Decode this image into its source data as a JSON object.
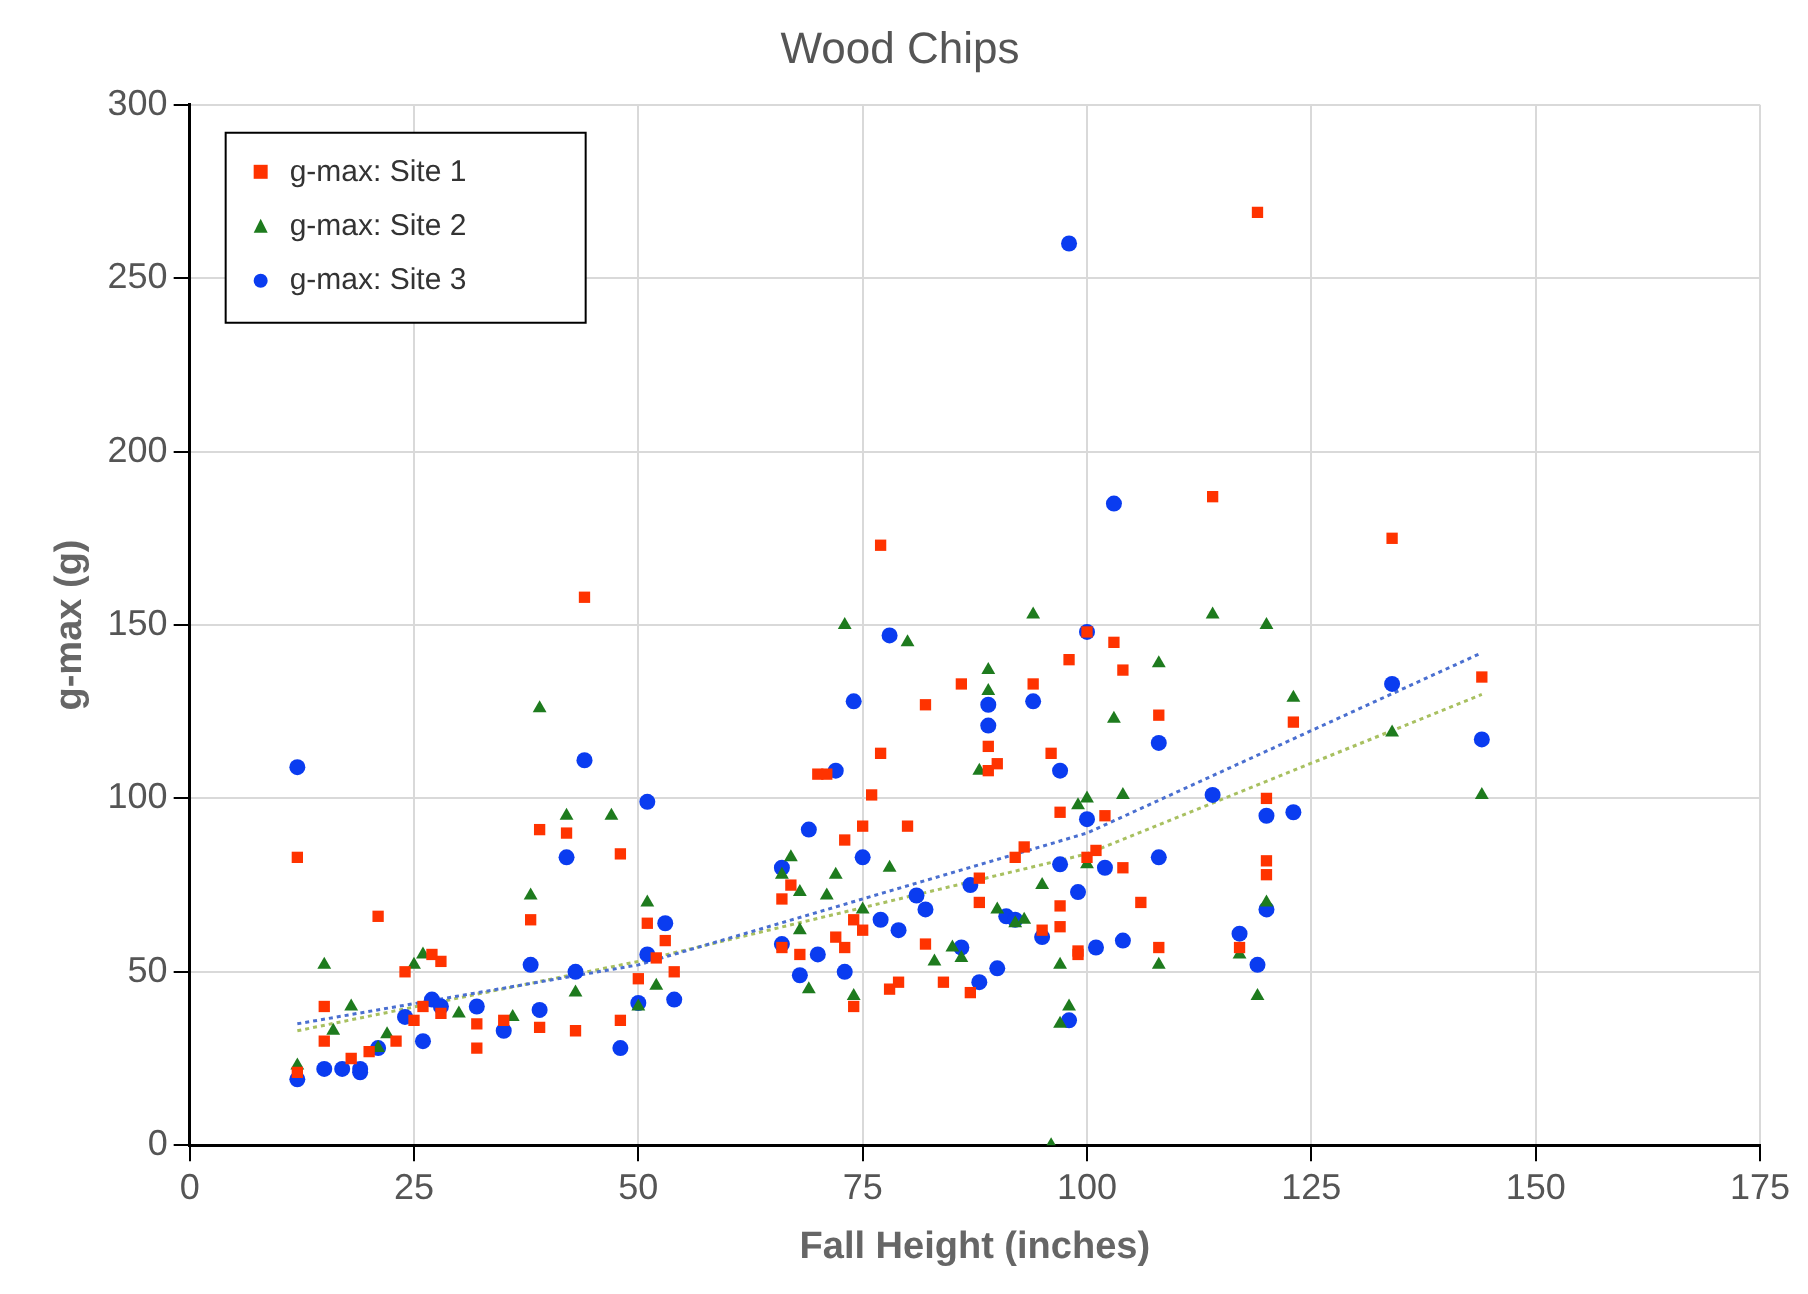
{
  "chart_data": {
    "type": "scatter",
    "title": "Wood Chips",
    "xlabel": "Fall Height (inches)",
    "ylabel": "g-max (g)",
    "xlim": [
      0,
      175
    ],
    "xticks": [
      0,
      25,
      50,
      75,
      100,
      125,
      150,
      175
    ],
    "ylim": [
      0,
      300
    ],
    "yticks": [
      0,
      50,
      100,
      150,
      200,
      250,
      300
    ],
    "grid": true,
    "legend": "top left",
    "series": [
      {
        "name": "g-max: Site 1",
        "color": "#ff3300",
        "marker": "square",
        "x": [
          12,
          12,
          15,
          15,
          18,
          20,
          21,
          23,
          24,
          25,
          26,
          27,
          28,
          28,
          32,
          32,
          35,
          38,
          39,
          39,
          42,
          43,
          44,
          48,
          48,
          50,
          51,
          52,
          53,
          54,
          66,
          66,
          67,
          68,
          70,
          71,
          72,
          73,
          73,
          74,
          74,
          75,
          75,
          76,
          77,
          77,
          78,
          79,
          80,
          82,
          82,
          84,
          86,
          87,
          88,
          88,
          89,
          89,
          90,
          92,
          93,
          94,
          95,
          96,
          97,
          97,
          97,
          98,
          99,
          99,
          100,
          100,
          101,
          102,
          103,
          104,
          104,
          106,
          108,
          108,
          114,
          117,
          119,
          120,
          120,
          120,
          123,
          134,
          144
        ],
        "values": [
          83,
          21,
          40,
          30,
          25,
          27,
          66,
          30,
          50,
          36,
          40,
          55,
          53,
          38,
          35,
          28,
          36,
          65,
          34,
          91,
          90,
          33,
          158,
          84,
          36,
          48,
          64,
          54,
          59,
          50,
          57,
          71,
          75,
          55,
          107,
          107,
          60,
          57,
          88,
          65,
          40,
          62,
          92,
          101,
          113,
          173,
          45,
          47,
          92,
          58,
          127,
          47,
          133,
          44,
          77,
          70,
          115,
          108,
          110,
          83,
          86,
          133,
          62,
          113,
          96,
          63,
          69,
          140,
          55,
          56,
          148,
          83,
          85,
          95,
          145,
          137,
          80,
          70,
          57,
          124,
          187,
          57,
          269,
          100,
          82,
          78,
          122,
          175,
          135
        ]
      },
      {
        "name": "g-max: Site 2",
        "color": "#1e7b1e",
        "marker": "triangle",
        "x": [
          12,
          15,
          16,
          18,
          21,
          22,
          25,
          26,
          30,
          36,
          38,
          39,
          42,
          43,
          47,
          50,
          51,
          52,
          66,
          67,
          68,
          68,
          69,
          71,
          72,
          73,
          74,
          75,
          78,
          80,
          83,
          85,
          86,
          88,
          89,
          89,
          90,
          92,
          93,
          94,
          95,
          96,
          97,
          97,
          98,
          99,
          100,
          100,
          103,
          104,
          108,
          108,
          114,
          117,
          119,
          120,
          120,
          123,
          134,
          144
        ],
        "values": [
          23,
          52,
          33,
          40,
          28,
          32,
          52,
          55,
          38,
          37,
          72,
          126,
          95,
          44,
          95,
          40,
          70,
          46,
          78,
          83,
          62,
          73,
          45,
          72,
          78,
          150,
          43,
          68,
          80,
          145,
          53,
          57,
          54,
          108,
          137,
          131,
          68,
          64,
          65,
          153,
          75,
          0,
          52,
          35,
          40,
          98,
          81,
          100,
          123,
          101,
          139,
          52,
          153,
          55,
          43,
          150,
          70,
          129,
          119,
          101
        ]
      },
      {
        "name": "g-max: Site 3",
        "color": "#0a3cf0",
        "marker": "circle",
        "x": [
          12,
          12,
          15,
          17,
          19,
          19,
          21,
          24,
          26,
          27,
          28,
          32,
          35,
          38,
          39,
          42,
          43,
          44,
          48,
          50,
          51,
          51,
          53,
          54,
          66,
          66,
          68,
          69,
          70,
          72,
          73,
          74,
          75,
          77,
          78,
          79,
          81,
          82,
          86,
          87,
          88,
          89,
          89,
          90,
          91,
          92,
          94,
          95,
          97,
          97,
          98,
          98,
          99,
          100,
          100,
          101,
          102,
          103,
          104,
          108,
          108,
          114,
          117,
          119,
          120,
          120,
          123,
          134,
          144
        ],
        "values": [
          109,
          19,
          22,
          22,
          22,
          21,
          28,
          37,
          30,
          42,
          40,
          40,
          33,
          52,
          39,
          83,
          50,
          111,
          28,
          41,
          99,
          55,
          64,
          42,
          58,
          80,
          49,
          91,
          55,
          108,
          50,
          128,
          83,
          65,
          147,
          62,
          72,
          68,
          57,
          75,
          47,
          127,
          121,
          51,
          66,
          65,
          128,
          60,
          108,
          81,
          260,
          36,
          73,
          148,
          94,
          57,
          80,
          185,
          59,
          116,
          83,
          101,
          61,
          52,
          95,
          68,
          96,
          133,
          117
        ]
      },
      {
        "type": "line",
        "color": "#4a6fd0",
        "marker": "none",
        "line_style": "dotted",
        "x": [
          12,
          50,
          100,
          144
        ],
        "values": [
          35,
          52,
          90,
          142
        ]
      },
      {
        "type": "line",
        "color": "#a8c060",
        "marker": "none",
        "line_style": "dotted",
        "x": [
          12,
          50,
          100,
          144
        ],
        "values": [
          33,
          53,
          84,
          130
        ]
      }
    ]
  }
}
